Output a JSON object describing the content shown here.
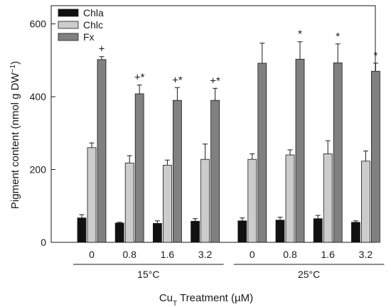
{
  "chart_data": {
    "type": "bar",
    "ylabel_main": "Pigment content (nmol g DW",
    "ylabel_sup": "−1",
    "ylabel_close": ")",
    "xlabel_main": "Cu",
    "xlabel_sub": "T",
    "xlabel_rest": " Treatment (µM)",
    "ylim": [
      0,
      650
    ],
    "yticks": [
      "0",
      "200",
      "400",
      "600"
    ],
    "ytick_values": [
      0,
      200,
      400,
      600
    ],
    "categories": [
      "0",
      "0.8",
      "1.6",
      "3.2",
      "0",
      "0.8",
      "1.6",
      "3.2"
    ],
    "groups": [
      {
        "label": "15°C",
        "indices": [
          0,
          1,
          2,
          3
        ]
      },
      {
        "label": "25°C",
        "indices": [
          4,
          5,
          6,
          7
        ]
      }
    ],
    "series": [
      {
        "name": "Chla",
        "color": "#111111",
        "values": [
          67,
          53,
          52,
          58,
          59,
          61,
          65,
          55
        ],
        "errors": [
          9,
          2,
          7,
          7,
          8,
          8,
          9,
          4
        ]
      },
      {
        "name": "Chlc",
        "color": "#cccccc",
        "values": [
          260,
          218,
          212,
          228,
          228,
          240,
          243,
          223
        ],
        "errors": [
          13,
          20,
          14,
          42,
          15,
          14,
          36,
          28
        ]
      },
      {
        "name": "Fx",
        "color": "#808080",
        "values": [
          502,
          408,
          390,
          390,
          492,
          503,
          493,
          470
        ],
        "errors": [
          8,
          24,
          35,
          33,
          55,
          48,
          52,
          22
        ]
      }
    ],
    "annotations": [
      {
        "index": 0,
        "text": "+"
      },
      {
        "index": 1,
        "text": "+*"
      },
      {
        "index": 2,
        "text": "+*"
      },
      {
        "index": 3,
        "text": "+*"
      },
      {
        "index": 5,
        "text": "*"
      },
      {
        "index": 6,
        "text": "*"
      },
      {
        "index": 7,
        "text": "*"
      }
    ],
    "legend_position": "top-left"
  }
}
